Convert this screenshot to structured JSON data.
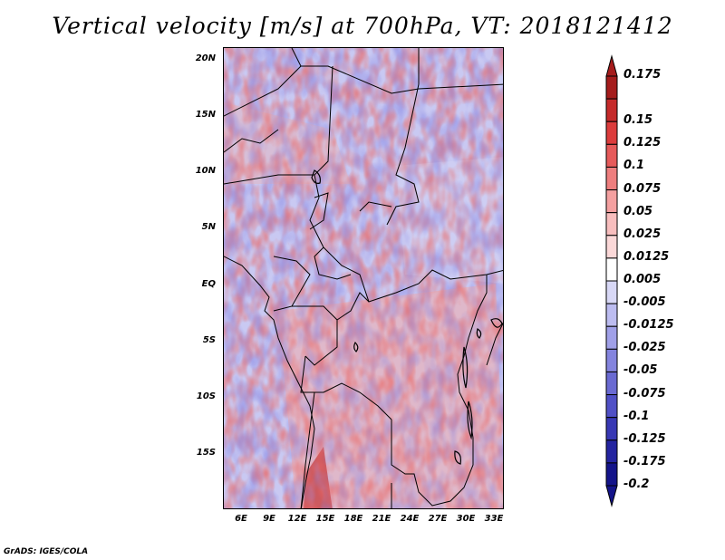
{
  "title": "Vertical velocity [m/s] at 700hPa, VT: 2018121412",
  "credit": "GrADS: IGES/COLA",
  "map": {
    "variable": "Vertical velocity",
    "units": "m/s",
    "level": "700hPa",
    "valid_time": "2018121412",
    "region": "Central Africa",
    "lat_ticks": [
      "20N",
      "15N",
      "10N",
      "5N",
      "EQ",
      "5S",
      "10S",
      "15S"
    ],
    "lon_ticks": [
      "6E",
      "9E",
      "12E",
      "15E",
      "18E",
      "21E",
      "24E",
      "27E",
      "30E",
      "33E"
    ]
  },
  "colorbar": {
    "labels": [
      "0.175",
      "0.15",
      "0.125",
      "0.1",
      "0.075",
      "0.05",
      "0.025",
      "0.0125",
      "0.005",
      "-0.005",
      "-0.0125",
      "-0.025",
      "-0.05",
      "-0.075",
      "-0.1",
      "-0.125",
      "-0.175",
      "-0.2"
    ],
    "colors": [
      "#a51c1c",
      "#c52a2a",
      "#dc3c3c",
      "#e65a5a",
      "#ee7e7e",
      "#f4a0a0",
      "#f8bebe",
      "#fbd8d8",
      "#ffffff",
      "#d8d8f6",
      "#bcbcf0",
      "#a0a0e8",
      "#8484de",
      "#6a6ad2",
      "#5050c6",
      "#3838b4",
      "#2424a0",
      "#14148a"
    ]
  }
}
